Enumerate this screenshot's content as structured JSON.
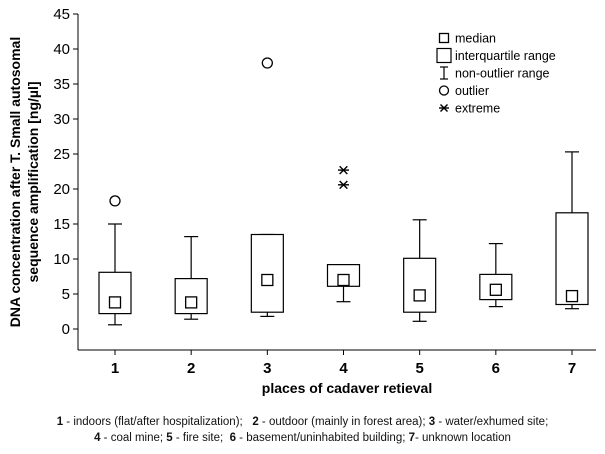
{
  "chart_data": {
    "type": "boxplot",
    "xlabel": "places of cadaver retieval",
    "ylabel_line1": "DNA concentration after T. Small autosomal",
    "ylabel_line2": "sequence amplification [ng/µl]",
    "ylim": [
      -3,
      45
    ],
    "yticks": [
      0,
      5,
      10,
      15,
      20,
      25,
      30,
      35,
      40,
      45
    ],
    "categories": [
      "1",
      "2",
      "3",
      "4",
      "5",
      "6",
      "7"
    ],
    "boxes": [
      {
        "category": "1",
        "median": 3.8,
        "q1": 2.2,
        "q3": 8.1,
        "whisker_low": 0.6,
        "whisker_high": 15.0,
        "outliers": [
          18.3
        ],
        "extremes": []
      },
      {
        "category": "2",
        "median": 3.8,
        "q1": 2.2,
        "q3": 7.2,
        "whisker_low": 1.4,
        "whisker_high": 13.2,
        "outliers": [],
        "extremes": []
      },
      {
        "category": "3",
        "median": 7.0,
        "q1": 2.4,
        "q3": 13.5,
        "whisker_low": 1.8,
        "whisker_high": 13.5,
        "outliers": [
          38.0
        ],
        "extremes": []
      },
      {
        "category": "4",
        "median": 7.0,
        "q1": 6.1,
        "q3": 9.2,
        "whisker_low": 3.9,
        "whisker_high": 9.2,
        "outliers": [],
        "extremes": [
          20.6,
          22.7
        ]
      },
      {
        "category": "5",
        "median": 4.8,
        "q1": 2.4,
        "q3": 10.1,
        "whisker_low": 1.1,
        "whisker_high": 15.6,
        "outliers": [],
        "extremes": []
      },
      {
        "category": "6",
        "median": 5.6,
        "q1": 4.2,
        "q3": 7.8,
        "whisker_low": 3.2,
        "whisker_high": 12.2,
        "outliers": [],
        "extremes": []
      },
      {
        "category": "7",
        "median": 4.7,
        "q1": 3.5,
        "q3": 16.6,
        "whisker_low": 2.9,
        "whisker_high": 25.3,
        "outliers": [],
        "extremes": []
      }
    ],
    "legend": {
      "position": "top-right",
      "items": [
        "median",
        "interquartile range",
        "non-outlier range",
        "outlier",
        "extreme"
      ]
    },
    "grid": false
  },
  "caption": {
    "line1": [
      {
        "num": "1",
        "text": " - indoors (flat/after hospitalization);   "
      },
      {
        "num": "2",
        "text": " - outdoor (mainly in forest area); "
      },
      {
        "num": "3",
        "text": " - water/exhumed site;"
      }
    ],
    "line2": [
      {
        "num": "4",
        "text": " - coal mine; "
      },
      {
        "num": "5",
        "text": " - fire site;  "
      },
      {
        "num": "6",
        "text": " - basement/uninhabited building; "
      },
      {
        "num": "7",
        "text": "- unknown location"
      }
    ]
  }
}
